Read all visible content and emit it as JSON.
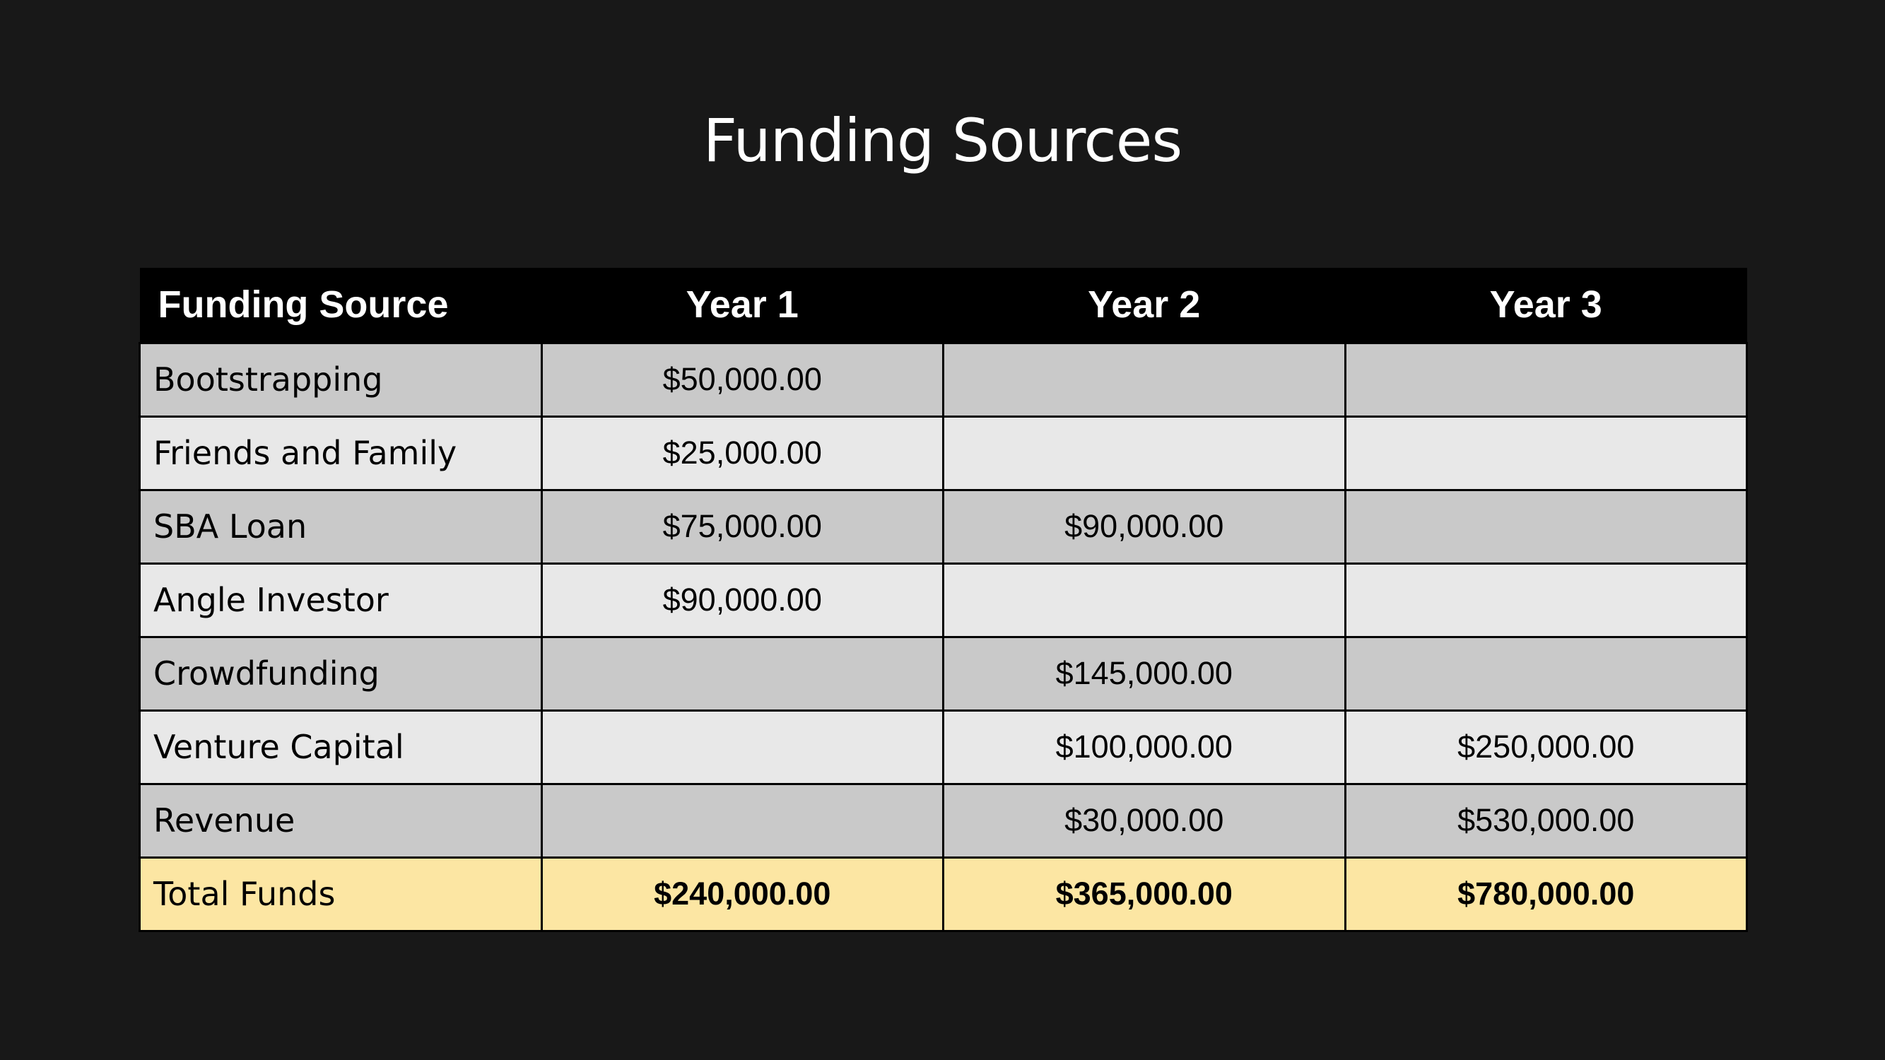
{
  "title": "Funding Sources",
  "table": {
    "headers": [
      "Funding Source",
      "Year 1",
      "Year 2",
      "Year 3"
    ],
    "rows": [
      {
        "source": "Bootstrapping",
        "year1": "$50,000.00",
        "year2": "",
        "year3": ""
      },
      {
        "source": "Friends and Family",
        "year1": "$25,000.00",
        "year2": "",
        "year3": ""
      },
      {
        "source": "SBA Loan",
        "year1": "$75,000.00",
        "year2": "$90,000.00",
        "year3": ""
      },
      {
        "source": "Angle Investor",
        "year1": "$90,000.00",
        "year2": "",
        "year3": ""
      },
      {
        "source": "Crowdfunding",
        "year1": "",
        "year2": "$145,000.00",
        "year3": ""
      },
      {
        "source": "Venture Capital",
        "year1": "",
        "year2": "$100,000.00",
        "year3": "$250,000.00"
      },
      {
        "source": "Revenue",
        "year1": "",
        "year2": "$30,000.00",
        "year3": "$530,000.00"
      }
    ],
    "total": {
      "source": "Total Funds",
      "year1": "$240,000.00",
      "year2": "$365,000.00",
      "year3": "$780,000.00"
    }
  },
  "colors": {
    "background": "#181818",
    "header": "#000000",
    "row_dark": "#c9c9c9",
    "row_light": "#e8e8e8",
    "total_row": "#fce6a3"
  }
}
